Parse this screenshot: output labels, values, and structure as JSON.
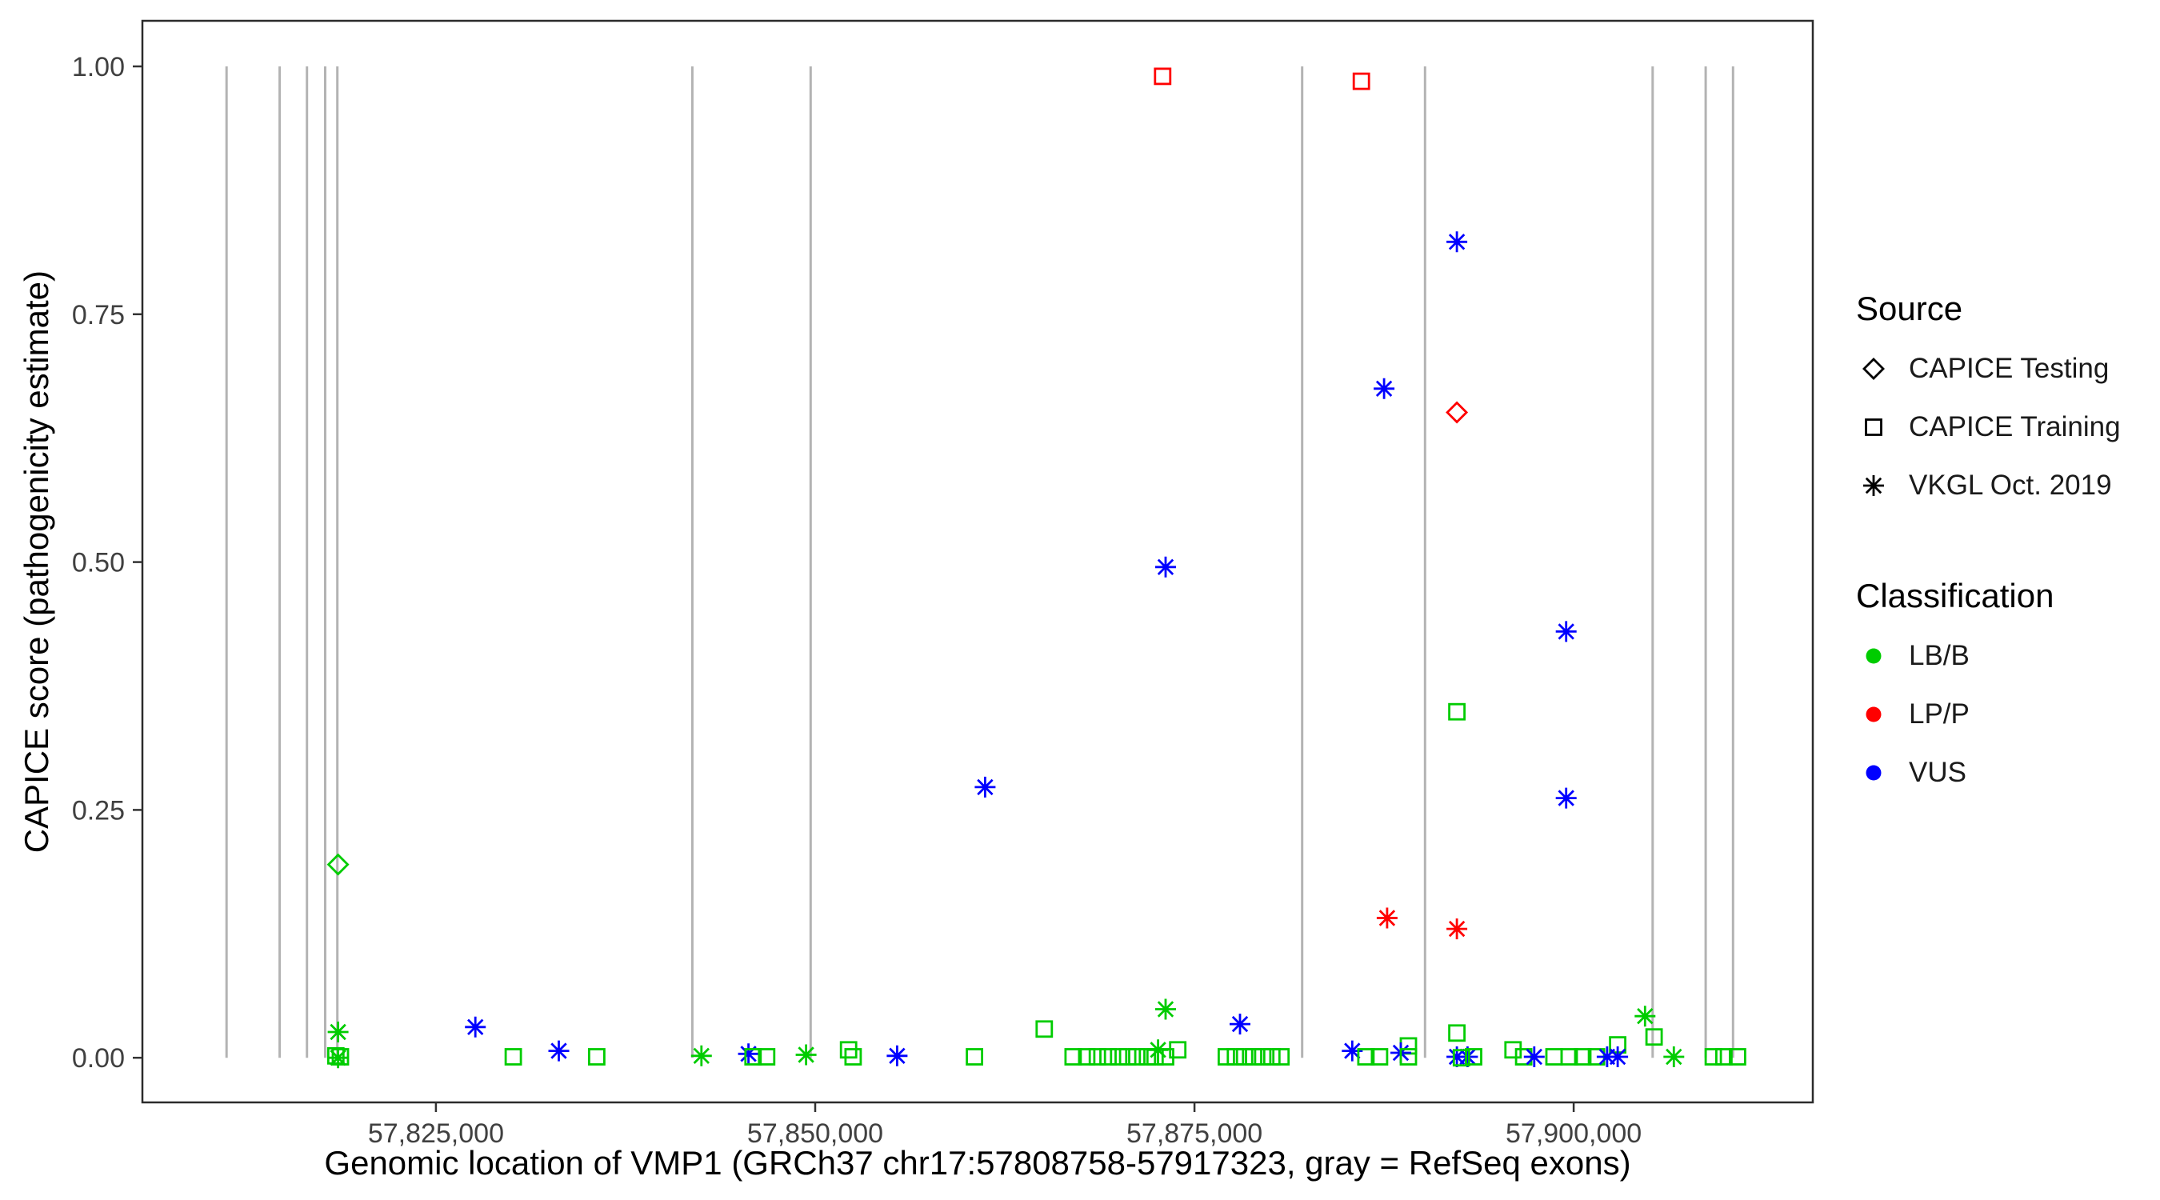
{
  "chart_data": {
    "type": "scatter",
    "title": "",
    "xlabel": "Genomic location of VMP1 (GRCh37 chr17:57808758-57917323, gray = RefSeq exons)",
    "ylabel": "CAPICE score (pathogenicity estimate)",
    "xlim": [
      57805650,
      57915760
    ],
    "ylim": [
      -0.045,
      1.046
    ],
    "grid": "off",
    "legend_position": "right",
    "x_ticks": [
      {
        "value": 57825000,
        "label": "57,825,000"
      },
      {
        "value": 57850000,
        "label": "57,850,000"
      },
      {
        "value": 57875000,
        "label": "57,875,000"
      },
      {
        "value": 57900000,
        "label": "57,900,000"
      }
    ],
    "y_ticks": [
      {
        "value": 0.0,
        "label": "0.00"
      },
      {
        "value": 0.25,
        "label": "0.25"
      },
      {
        "value": 0.5,
        "label": "0.50"
      },
      {
        "value": 0.75,
        "label": "0.75"
      },
      {
        "value": 1.0,
        "label": "1.00"
      }
    ],
    "exon_color": "#b3b3b3",
    "exon_y_span": [
      0.0,
      1.0
    ],
    "exons": [
      57811200,
      57814700,
      57816500,
      57817700,
      57818500,
      57841900,
      57849700,
      57882100,
      57890200,
      57905200,
      57908700,
      57910500
    ],
    "shape_map": {
      "testing": "diamond",
      "training": "square",
      "vkgl": "asterisk"
    },
    "color_map": {
      "LB/B": "#00cc00",
      "LP/P": "#ff0000",
      "VUS": "#0000ff"
    },
    "points_schema": [
      "x",
      "y",
      "source",
      "classification"
    ],
    "points": [
      [
        57872900,
        0.99,
        "training",
        "LP/P"
      ],
      [
        57886000,
        0.985,
        "training",
        "LP/P"
      ],
      [
        57892300,
        0.823,
        "vkgl",
        "VUS"
      ],
      [
        57887500,
        0.675,
        "vkgl",
        "VUS"
      ],
      [
        57892300,
        0.651,
        "testing",
        "LP/P"
      ],
      [
        57873100,
        0.495,
        "vkgl",
        "VUS"
      ],
      [
        57899500,
        0.43,
        "vkgl",
        "VUS"
      ],
      [
        57892300,
        0.349,
        "training",
        "LB/B"
      ],
      [
        57861200,
        0.273,
        "vkgl",
        "VUS"
      ],
      [
        57899500,
        0.262,
        "vkgl",
        "VUS"
      ],
      [
        57818550,
        0.195,
        "testing",
        "LB/B"
      ],
      [
        57887700,
        0.141,
        "vkgl",
        "LP/P"
      ],
      [
        57892300,
        0.13,
        "vkgl",
        "LP/P"
      ],
      [
        57873100,
        0.049,
        "vkgl",
        "LB/B"
      ],
      [
        57904700,
        0.042,
        "vkgl",
        "LB/B"
      ],
      [
        57878000,
        0.034,
        "vkgl",
        "VUS"
      ],
      [
        57827600,
        0.031,
        "vkgl",
        "VUS"
      ],
      [
        57865100,
        0.029,
        "training",
        "LB/B"
      ],
      [
        57818550,
        0.026,
        "vkgl",
        "LB/B"
      ],
      [
        57892300,
        0.025,
        "training",
        "LB/B"
      ],
      [
        57905300,
        0.021,
        "training",
        "LB/B"
      ],
      [
        57902900,
        0.013,
        "training",
        "LB/B"
      ],
      [
        57889100,
        0.012,
        "training",
        "LB/B"
      ],
      [
        57872600,
        0.008,
        "vkgl",
        "LB/B"
      ],
      [
        57873900,
        0.008,
        "training",
        "LB/B"
      ],
      [
        57852200,
        0.008,
        "training",
        "LB/B"
      ],
      [
        57896000,
        0.008,
        "training",
        "LB/B"
      ],
      [
        57833100,
        0.007,
        "vkgl",
        "VUS"
      ],
      [
        57885400,
        0.007,
        "vkgl",
        "VUS"
      ],
      [
        57888600,
        0.005,
        "vkgl",
        "VUS"
      ],
      [
        57845600,
        0.004,
        "vkgl",
        "VUS"
      ],
      [
        57849400,
        0.003,
        "vkgl",
        "LB/B"
      ],
      [
        57855400,
        0.002,
        "vkgl",
        "VUS"
      ],
      [
        57842500,
        0.002,
        "vkgl",
        "LB/B"
      ],
      [
        57818400,
        0.002,
        "training",
        "LB/B"
      ],
      [
        57818700,
        0.001,
        "training",
        "LB/B"
      ],
      [
        57818550,
        0.0,
        "vkgl",
        "LB/B"
      ],
      [
        57830100,
        0.001,
        "training",
        "LB/B"
      ],
      [
        57835600,
        0.001,
        "training",
        "LB/B"
      ],
      [
        57845900,
        0.001,
        "training",
        "LB/B"
      ],
      [
        57846800,
        0.001,
        "training",
        "LB/B"
      ],
      [
        57852500,
        0.001,
        "training",
        "LB/B"
      ],
      [
        57860500,
        0.001,
        "training",
        "LB/B"
      ],
      [
        57867000,
        0.001,
        "training",
        "LB/B"
      ],
      [
        57867900,
        0.001,
        "training",
        "LB/B"
      ],
      [
        57868600,
        0.001,
        "training",
        "LB/B"
      ],
      [
        57869300,
        0.001,
        "training",
        "LB/B"
      ],
      [
        57870000,
        0.001,
        "training",
        "LB/B"
      ],
      [
        57870600,
        0.001,
        "training",
        "LB/B"
      ],
      [
        57871200,
        0.001,
        "training",
        "LB/B"
      ],
      [
        57871900,
        0.001,
        "training",
        "LB/B"
      ],
      [
        57872400,
        0.001,
        "training",
        "LB/B"
      ],
      [
        57873100,
        0.001,
        "training",
        "LB/B"
      ],
      [
        57877100,
        0.001,
        "training",
        "LB/B"
      ],
      [
        57877700,
        0.001,
        "training",
        "LB/B"
      ],
      [
        57878300,
        0.001,
        "training",
        "LB/B"
      ],
      [
        57878900,
        0.001,
        "training",
        "LB/B"
      ],
      [
        57879500,
        0.001,
        "training",
        "LB/B"
      ],
      [
        57880100,
        0.001,
        "training",
        "LB/B"
      ],
      [
        57880700,
        0.001,
        "training",
        "LB/B"
      ],
      [
        57886300,
        0.001,
        "training",
        "LB/B"
      ],
      [
        57887200,
        0.001,
        "training",
        "LB/B"
      ],
      [
        57889100,
        0.001,
        "training",
        "LB/B"
      ],
      [
        57892300,
        0.001,
        "vkgl",
        "VUS"
      ],
      [
        57893000,
        0.001,
        "vkgl",
        "VUS"
      ],
      [
        57892600,
        0.0,
        "training",
        "LB/B"
      ],
      [
        57893400,
        0.001,
        "training",
        "LB/B"
      ],
      [
        57896700,
        0.001,
        "training",
        "LB/B"
      ],
      [
        57897400,
        0.001,
        "vkgl",
        "VUS"
      ],
      [
        57898700,
        0.001,
        "training",
        "LB/B"
      ],
      [
        57899700,
        0.001,
        "training",
        "LB/B"
      ],
      [
        57900600,
        0.001,
        "training",
        "LB/B"
      ],
      [
        57901500,
        0.001,
        "training",
        "LB/B"
      ],
      [
        57902200,
        0.001,
        "vkgl",
        "VUS"
      ],
      [
        57902900,
        0.001,
        "vkgl",
        "VUS"
      ],
      [
        57906600,
        0.001,
        "vkgl",
        "LB/B"
      ],
      [
        57909200,
        0.001,
        "training",
        "LB/B"
      ],
      [
        57909900,
        0.001,
        "training",
        "LB/B"
      ],
      [
        57910800,
        0.001,
        "training",
        "LB/B"
      ]
    ]
  },
  "legend": {
    "source": {
      "title": "Source",
      "items": [
        {
          "label": "CAPICE Testing",
          "shape": "diamond"
        },
        {
          "label": "CAPICE Training",
          "shape": "square"
        },
        {
          "label": "VKGL Oct. 2019",
          "shape": "asterisk"
        }
      ]
    },
    "classification": {
      "title": "Classification",
      "items": [
        {
          "label": "LB/B",
          "color": "#00cc00"
        },
        {
          "label": "LP/P",
          "color": "#ff0000"
        },
        {
          "label": "VUS",
          "color": "#0000ff"
        }
      ]
    }
  }
}
